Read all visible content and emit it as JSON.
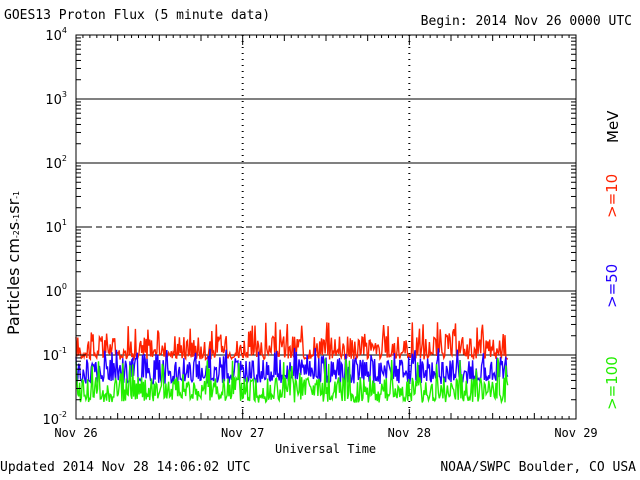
{
  "header": {
    "title": "GOES13 Proton Flux (5 minute data)",
    "begin": "Begin: 2014 Nov 26 0000 UTC"
  },
  "footer": {
    "updated": "Updated 2014 Nov 28 14:06:02 UTC",
    "credit": "NOAA/SWPC Boulder, CO USA"
  },
  "chart_data": {
    "type": "line",
    "title": "GOES13 Proton Flux (5 minute data)",
    "xlabel": "Universal Time",
    "ylabel": "Particles cm⁻²s⁻¹sr⁻¹",
    "yscale": "log",
    "ylim": [
      0.01,
      10000
    ],
    "y_ticks": [
      {
        "base": "10",
        "exp": "4"
      },
      {
        "base": "10",
        "exp": "3"
      },
      {
        "base": "10",
        "exp": "2"
      },
      {
        "base": "10",
        "exp": "1"
      },
      {
        "base": "10",
        "exp": "0"
      },
      {
        "base": "10",
        "exp": "-1"
      },
      {
        "base": "10",
        "exp": "-2"
      }
    ],
    "x_ticks": [
      "Nov 26",
      "Nov 27",
      "Nov 28",
      "Nov 29"
    ],
    "xlim_days": [
      0,
      3
    ],
    "grid": true,
    "unit_label": "MeV",
    "series": [
      {
        "name": ">=10",
        "color": "#ff2200",
        "base": 0.11,
        "vmin": 0.085,
        "vmax": 0.33
      },
      {
        "name": ">=50",
        "color": "#2200ff",
        "base": 0.05,
        "vmin": 0.035,
        "vmax": 0.13
      },
      {
        "name": ">=100",
        "color": "#22ee00",
        "base": 0.025,
        "vmin": 0.018,
        "vmax": 0.09
      }
    ],
    "data_end_day": 2.59
  }
}
